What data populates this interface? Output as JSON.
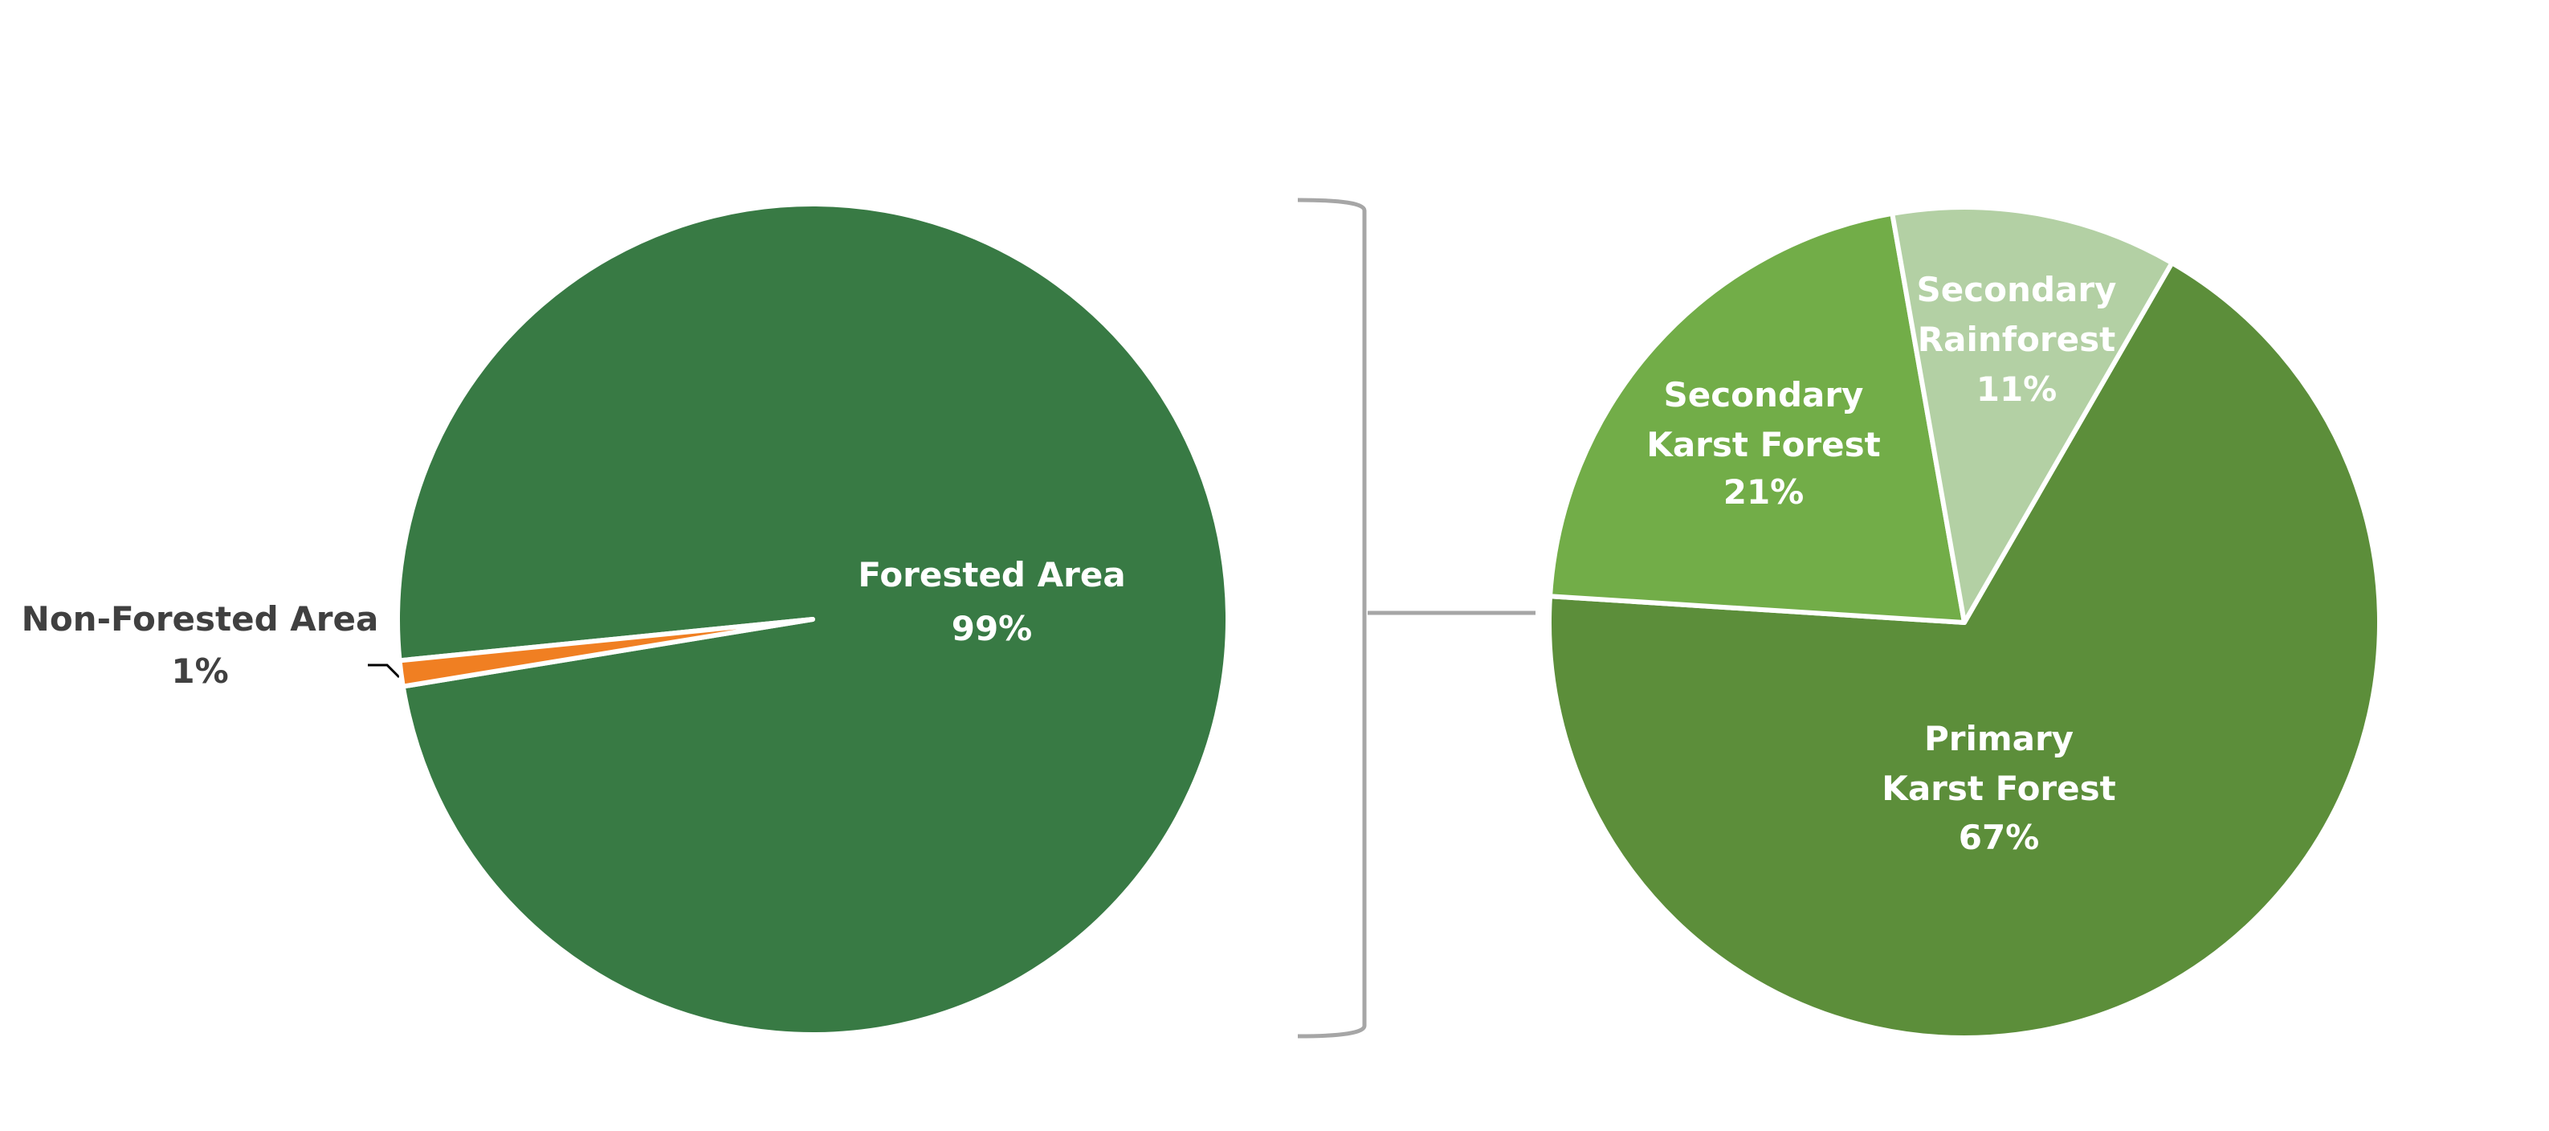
{
  "chart_data": [
    {
      "type": "pie",
      "categories": [
        "Forested Area",
        "Non-Forested Area"
      ],
      "values": [
        99,
        1
      ],
      "value_labels": [
        "99%",
        "1%"
      ],
      "colors": [
        "#387a44",
        "#f07f22"
      ]
    },
    {
      "type": "pie",
      "categories": [
        "Primary\nKarst Forest",
        "Secondary\nKarst Forest",
        "Secondary\nRainforest"
      ],
      "values": [
        67,
        21,
        11
      ],
      "value_labels": [
        "67%",
        "21%",
        "11%"
      ],
      "colors": [
        "#5c8e3a",
        "#72ad48",
        "#b3d0a4"
      ]
    }
  ]
}
